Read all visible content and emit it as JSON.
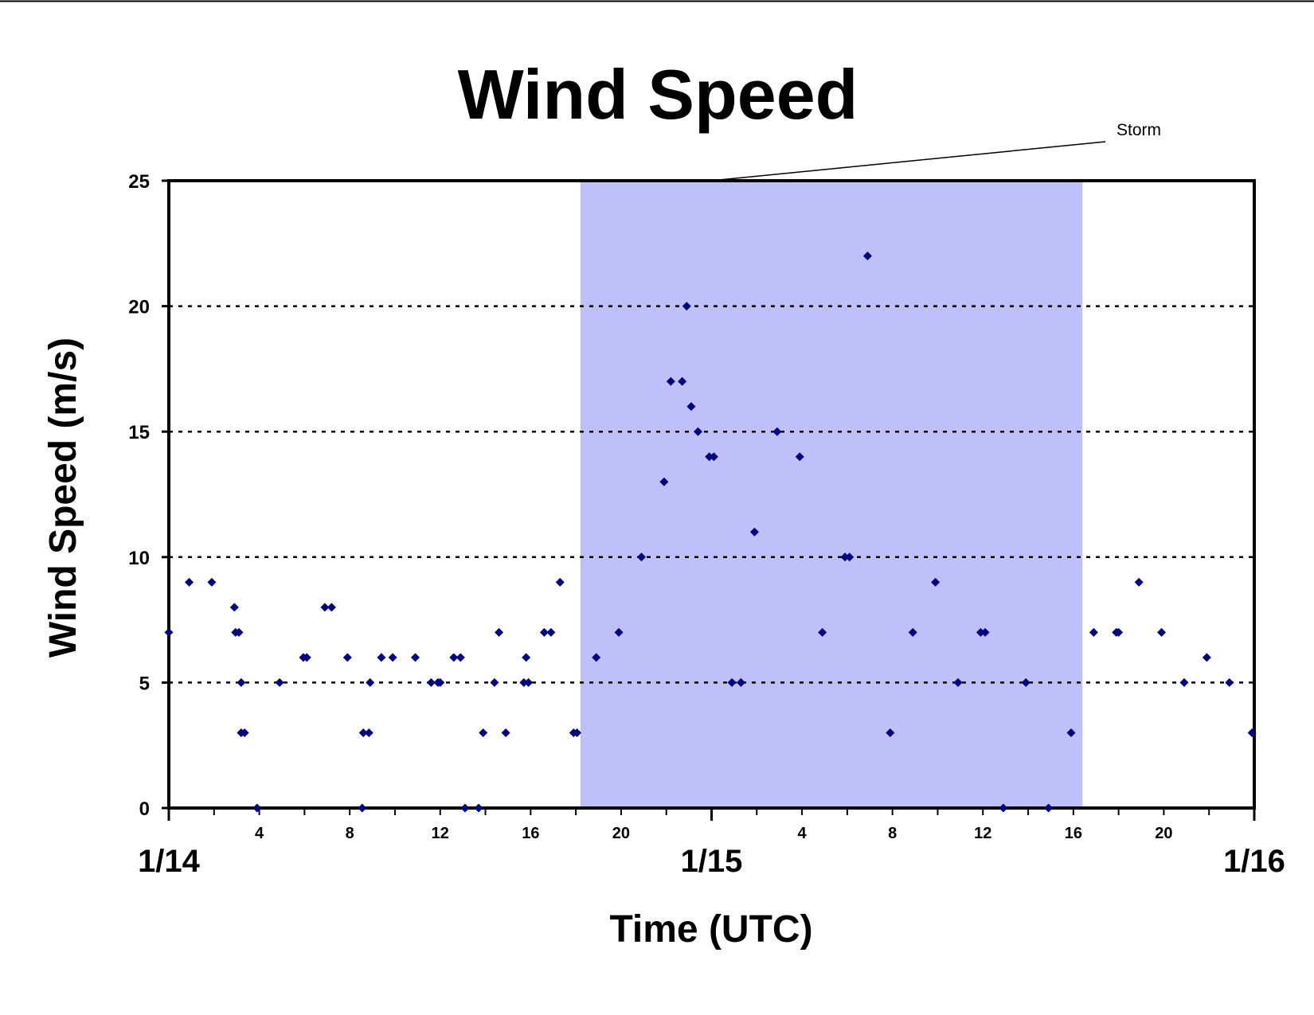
{
  "chart_data": {
    "type": "scatter",
    "title": "Wind Speed",
    "xlabel": "Time (UTC)",
    "ylabel": "Wind Speed (m/s)",
    "x_unit": "hours after 1/14 00:00 UTC",
    "xlim": [
      0,
      48
    ],
    "ylim": [
      0,
      25
    ],
    "yticks": [
      0,
      5,
      10,
      15,
      20,
      25
    ],
    "grid": "horizontal dotted lines at 5, 10, 15, 20",
    "x_hour_ticks": [
      "4",
      "8",
      "12",
      "16",
      "20",
      "4",
      "8",
      "12",
      "16",
      "20"
    ],
    "x_day_ticks": [
      "1/14",
      "1/15",
      "1/16"
    ],
    "marker_color": "#000080",
    "shaded_region": {
      "label": "Storm",
      "x_start": 18.2,
      "x_end": 16.4,
      "x_end_day": "1/15",
      "color": "#bfbffa"
    },
    "points": [
      [
        0.0,
        7
      ],
      [
        0.9,
        9
      ],
      [
        1.9,
        9
      ],
      [
        2.9,
        8
      ],
      [
        2.95,
        7
      ],
      [
        3.1,
        7
      ],
      [
        3.2,
        5
      ],
      [
        3.2,
        3
      ],
      [
        3.35,
        3
      ],
      [
        3.9,
        0
      ],
      [
        4.9,
        5
      ],
      [
        5.95,
        6
      ],
      [
        6.1,
        6
      ],
      [
        6.9,
        8
      ],
      [
        7.2,
        8
      ],
      [
        7.9,
        6
      ],
      [
        8.55,
        0
      ],
      [
        8.6,
        3
      ],
      [
        8.85,
        3
      ],
      [
        8.9,
        5
      ],
      [
        9.4,
        6
      ],
      [
        9.9,
        6
      ],
      [
        10.9,
        6
      ],
      [
        11.6,
        5
      ],
      [
        11.9,
        5
      ],
      [
        12.0,
        5
      ],
      [
        12.6,
        6
      ],
      [
        12.9,
        6
      ],
      [
        13.1,
        0
      ],
      [
        13.7,
        0
      ],
      [
        13.9,
        3
      ],
      [
        14.4,
        5
      ],
      [
        14.6,
        7
      ],
      [
        14.9,
        3
      ],
      [
        15.7,
        5
      ],
      [
        15.8,
        6
      ],
      [
        15.9,
        5
      ],
      [
        16.6,
        7
      ],
      [
        16.9,
        7
      ],
      [
        17.3,
        9
      ],
      [
        17.9,
        3
      ],
      [
        18.05,
        3
      ],
      [
        18.9,
        6
      ],
      [
        19.9,
        7
      ],
      [
        20.9,
        10
      ],
      [
        21.9,
        13
      ],
      [
        22.2,
        17
      ],
      [
        22.7,
        17
      ],
      [
        22.9,
        20
      ],
      [
        23.1,
        16
      ],
      [
        23.4,
        15
      ],
      [
        23.9,
        14
      ],
      [
        24.1,
        14
      ],
      [
        24.9,
        5
      ],
      [
        25.3,
        5
      ],
      [
        25.9,
        11
      ],
      [
        26.9,
        15
      ],
      [
        27.9,
        14
      ],
      [
        28.9,
        7
      ],
      [
        29.9,
        10
      ],
      [
        30.1,
        10
      ],
      [
        30.9,
        22
      ],
      [
        31.9,
        3
      ],
      [
        32.9,
        7
      ],
      [
        33.9,
        9
      ],
      [
        34.9,
        5
      ],
      [
        35.9,
        7
      ],
      [
        36.1,
        7
      ],
      [
        36.9,
        0
      ],
      [
        37.9,
        5
      ],
      [
        38.9,
        0
      ],
      [
        39.9,
        3
      ],
      [
        40.9,
        7
      ],
      [
        41.9,
        7
      ],
      [
        42.0,
        7
      ],
      [
        42.9,
        9
      ],
      [
        43.9,
        7
      ],
      [
        44.9,
        5
      ],
      [
        45.9,
        6
      ],
      [
        46.9,
        5
      ],
      [
        47.9,
        3
      ]
    ]
  }
}
